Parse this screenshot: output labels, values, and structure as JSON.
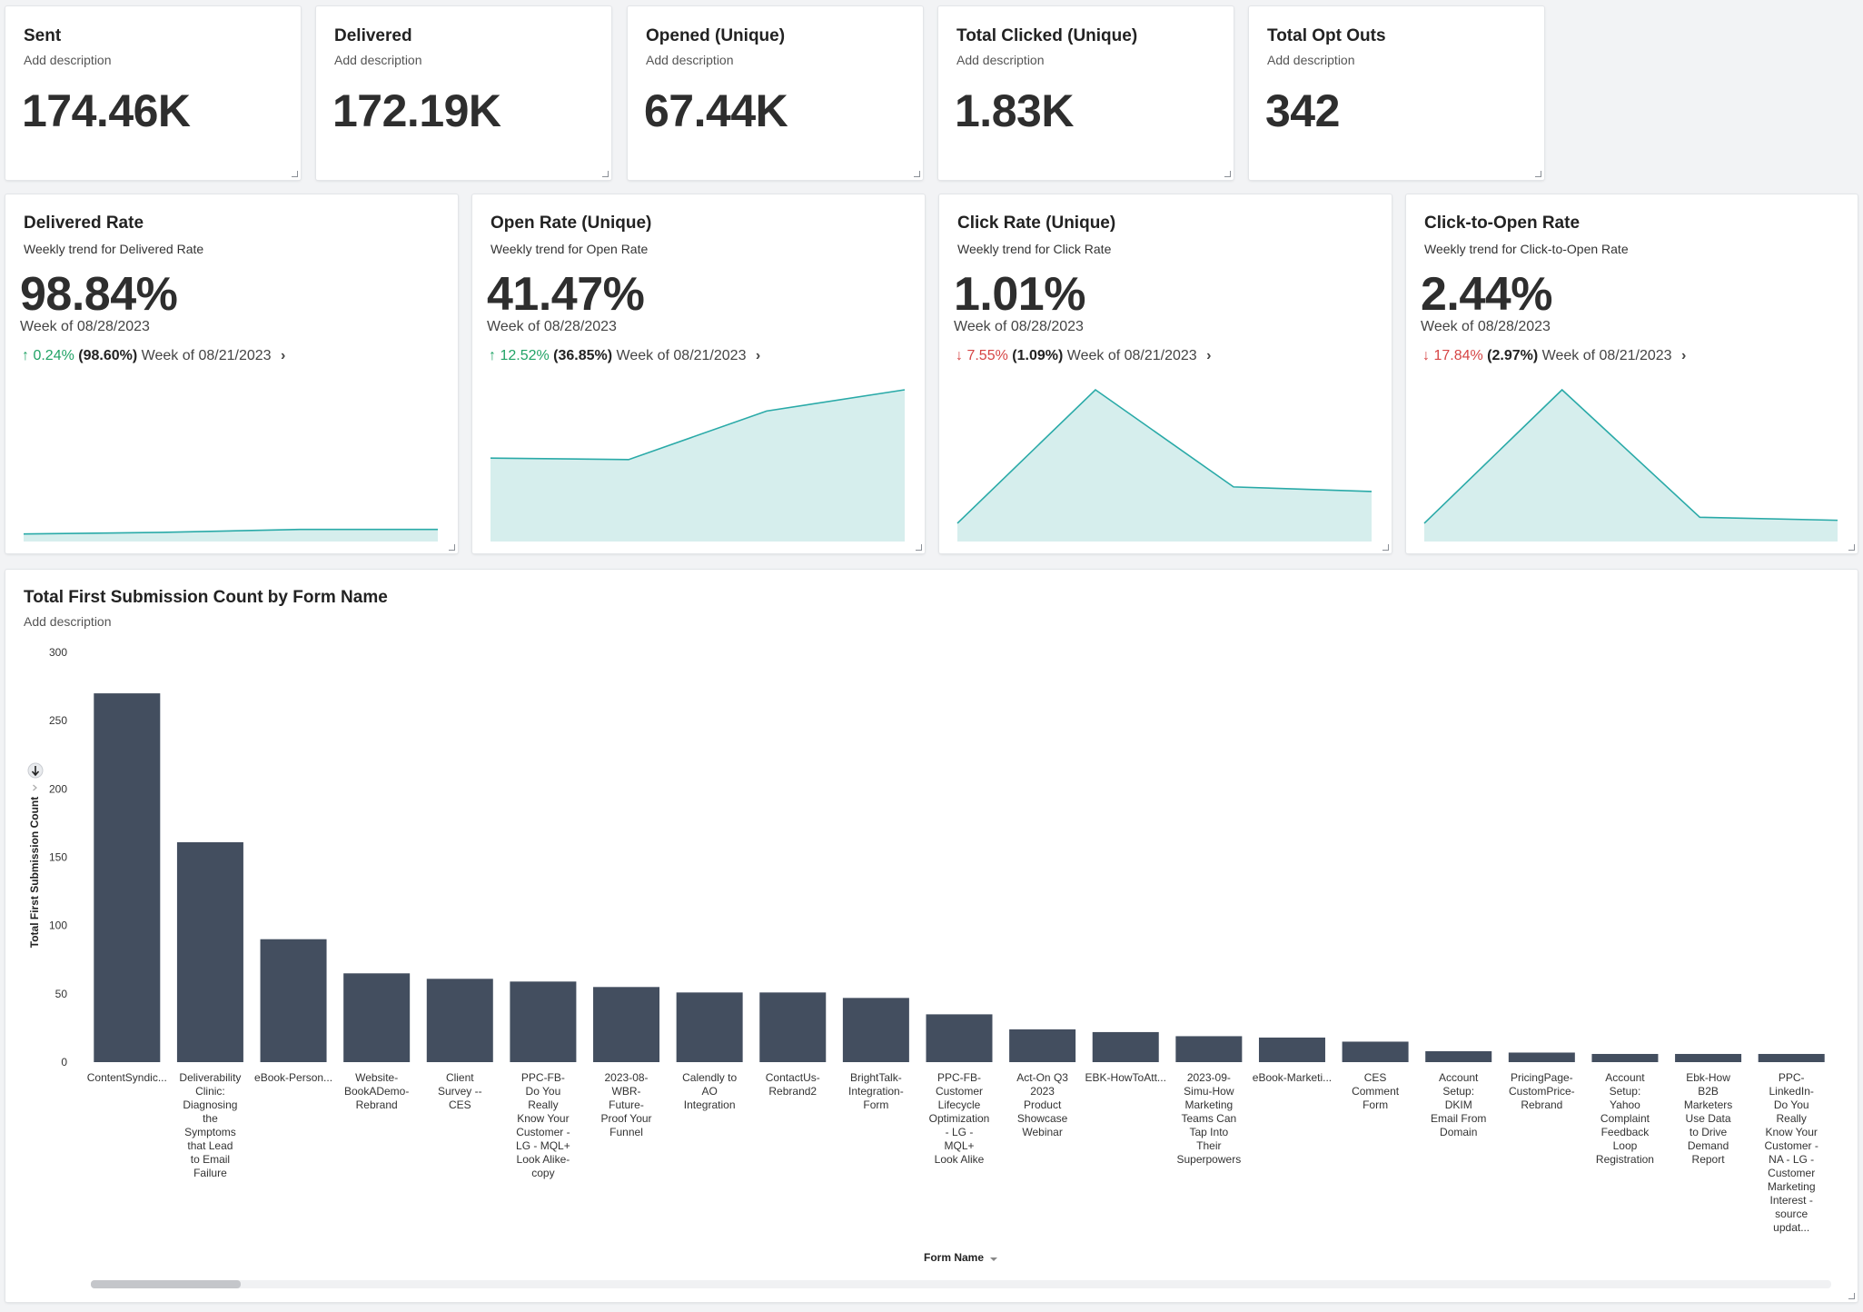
{
  "kpis": [
    {
      "title": "Sent",
      "description": "Add description",
      "value": "174.46K"
    },
    {
      "title": "Delivered",
      "description": "Add description",
      "value": "172.19K"
    },
    {
      "title": "Opened (Unique)",
      "description": "Add description",
      "value": "67.44K"
    },
    {
      "title": "Total Clicked (Unique)",
      "description": "Add description",
      "value": "1.83K"
    },
    {
      "title": "Total Opt Outs",
      "description": "Add description",
      "value": "342"
    }
  ],
  "rates": [
    {
      "title": "Delivered Rate",
      "description": "Weekly trend for Delivered Rate",
      "value": "98.84%",
      "week": "Week of 08/28/2023",
      "change_arrow": "↑",
      "change": "0.24%",
      "direction": "up",
      "prev_value": "(98.60%)",
      "prev_week": "Week of 08/21/2023",
      "trend": [
        0.05,
        0.06,
        0.08,
        0.08
      ]
    },
    {
      "title": "Open Rate (Unique)",
      "description": "Weekly trend for Open Rate",
      "value": "41.47%",
      "week": "Week of 08/28/2023",
      "change_arrow": "↑",
      "change": "12.52%",
      "direction": "up",
      "prev_value": "(36.85%)",
      "prev_week": "Week of 08/21/2023",
      "trend": [
        0.55,
        0.54,
        0.86,
        1.0
      ]
    },
    {
      "title": "Click Rate (Unique)",
      "description": "Weekly trend for Click Rate",
      "value": "1.01%",
      "week": "Week of 08/28/2023",
      "change_arrow": "↓",
      "change": "7.55%",
      "direction": "down",
      "prev_value": "(1.09%)",
      "prev_week": "Week of 08/21/2023",
      "trend": [
        0.12,
        1.0,
        0.36,
        0.33
      ]
    },
    {
      "title": "Click-to-Open Rate",
      "description": "Weekly trend for Click-to-Open Rate",
      "value": "2.44%",
      "week": "Week of 08/28/2023",
      "change_arrow": "↓",
      "change": "17.84%",
      "direction": "down",
      "prev_value": "(2.97%)",
      "prev_week": "Week of 08/21/2023",
      "trend": [
        0.12,
        1.0,
        0.16,
        0.14
      ]
    }
  ],
  "colors": {
    "bar": "#434e5f",
    "spark_line": "#2aaaa8",
    "spark_fill": "#d6eeed",
    "up": "#21a366",
    "down": "#d64545"
  },
  "bar_panel": {
    "title": "Total First Submission Count by Form Name",
    "description": "Add description",
    "sort_icon": "sort-descending-icon",
    "xlabel_sort_icon": "caret-down-icon"
  },
  "chart_data": {
    "type": "bar",
    "title": "Total First Submission Count by Form Name",
    "xlabel": "Form Name",
    "ylabel": "Total First Submission Count",
    "ylim": [
      0,
      300
    ],
    "yticks": [
      0,
      50,
      100,
      150,
      200,
      250,
      300
    ],
    "grid": false,
    "categories": [
      "ContentSyndic...",
      "Deliverability Clinic: Diagnosing the Symptoms that Lead to Email Failure",
      "eBook-Person...",
      "Website-BookADemo-Rebrand",
      "Client Survey -- CES",
      "PPC-FB-Do You Really Know Your Customer - LG - MQL+ Look Alike-copy",
      "2023-08-WBR-Future-Proof Your Funnel",
      "Calendly to AO Integration",
      "ContactUs-Rebrand2",
      "BrightTalk-Integration-Form",
      "PPC-FB-Customer Lifecycle Optimization - LG - MQL+ Look Alike",
      "Act-On Q3 2023 Product Showcase Webinar",
      "EBK-HowToAtt...",
      "2023-09-Simu-How Marketing Teams Can Tap Into Their Superpowers",
      "eBook-Marketi...",
      "CES Comment Form",
      "Account Setup: DKIM Email From Domain",
      "PricingPage-CustomPrice-Rebrand",
      "Account Setup: Yahoo Complaint Feedback Loop Registration",
      "Ebk-How B2B Marketers Use Data to Drive Demand Report",
      "PPC-LinkedIn-Do You Really Know Your Customer - NA - LG - Customer Marketing Interest - source updat..."
    ],
    "x_label_lines": [
      [
        "ContentSyndic..."
      ],
      [
        "Deliverability",
        "Clinic:",
        "Diagnosing",
        "the",
        "Symptoms",
        "that Lead",
        "to Email",
        "Failure"
      ],
      [
        "eBook-Person..."
      ],
      [
        "Website-",
        "BookADemo-",
        "Rebrand"
      ],
      [
        "Client",
        "Survey --",
        "CES"
      ],
      [
        "PPC-FB-",
        "Do You",
        "Really",
        "Know Your",
        "Customer -",
        "LG - MQL+",
        "Look Alike-",
        "copy"
      ],
      [
        "2023-08-",
        "WBR-",
        "Future-",
        "Proof Your",
        "Funnel"
      ],
      [
        "Calendly to",
        "AO",
        "Integration"
      ],
      [
        "ContactUs-",
        "Rebrand2"
      ],
      [
        "BrightTalk-",
        "Integration-",
        "Form"
      ],
      [
        "PPC-FB-",
        "Customer",
        "Lifecycle",
        "Optimization",
        "- LG -",
        "MQL+",
        "Look Alike"
      ],
      [
        "Act-On Q3",
        "2023",
        "Product",
        "Showcase",
        "Webinar"
      ],
      [
        "EBK-HowToAtt..."
      ],
      [
        "2023-09-",
        "Simu-How",
        "Marketing",
        "Teams Can",
        "Tap Into",
        "Their",
        "Superpowers"
      ],
      [
        "eBook-Marketi..."
      ],
      [
        "CES",
        "Comment",
        "Form"
      ],
      [
        "Account",
        "Setup:",
        "DKIM",
        "Email From",
        "Domain"
      ],
      [
        "PricingPage-",
        "CustomPrice-",
        "Rebrand"
      ],
      [
        "Account",
        "Setup:",
        "Yahoo",
        "Complaint",
        "Feedback",
        "Loop",
        "Registration"
      ],
      [
        "Ebk-How",
        "B2B",
        "Marketers",
        "Use Data",
        "to Drive",
        "Demand",
        "Report"
      ],
      [
        "PPC-",
        "LinkedIn-",
        "Do You",
        "Really",
        "Know Your",
        "Customer -",
        "NA - LG -",
        "Customer",
        "Marketing",
        "Interest -",
        "source",
        "updat..."
      ]
    ],
    "values": [
      270,
      161,
      90,
      65,
      61,
      59,
      55,
      51,
      51,
      47,
      35,
      24,
      22,
      19,
      18,
      15,
      8,
      7,
      6,
      6,
      6
    ]
  }
}
